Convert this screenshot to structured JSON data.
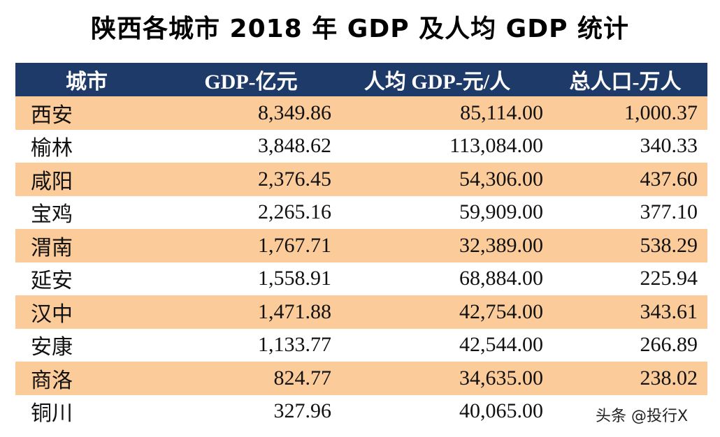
{
  "title": "陕西各城市 2018 年 GDP 及人均 GDP 统计",
  "headers": [
    "城市",
    "GDP-亿元",
    "人均 GDP-元/人",
    "总人口-万人"
  ],
  "rows": [
    [
      "西安",
      "8,349.86",
      "85,114.00",
      "1,000.37"
    ],
    [
      "榆林",
      "3,848.62",
      "113,084.00",
      "340.33"
    ],
    [
      "咸阳",
      "2,376.45",
      "54,306.00",
      "437.60"
    ],
    [
      "宝鸡",
      "2,265.16",
      "59,909.00",
      "377.10"
    ],
    [
      "渭南",
      "1,767.71",
      "32,389.00",
      "538.29"
    ],
    [
      "延安",
      "1,558.91",
      "68,884.00",
      "225.94"
    ],
    [
      "汉中",
      "1,471.88",
      "42,754.00",
      "343.61"
    ],
    [
      "安康",
      "1,133.77",
      "42,544.00",
      "266.89"
    ],
    [
      "商洛",
      "824.77",
      "34,635.00",
      "238.02"
    ],
    [
      "铜川",
      "327.96",
      "40,065.00",
      ""
    ]
  ],
  "watermark": "头条 @投行X",
  "colors": {
    "header": "#1e3a68",
    "stripe": "#fbcb9a"
  }
}
